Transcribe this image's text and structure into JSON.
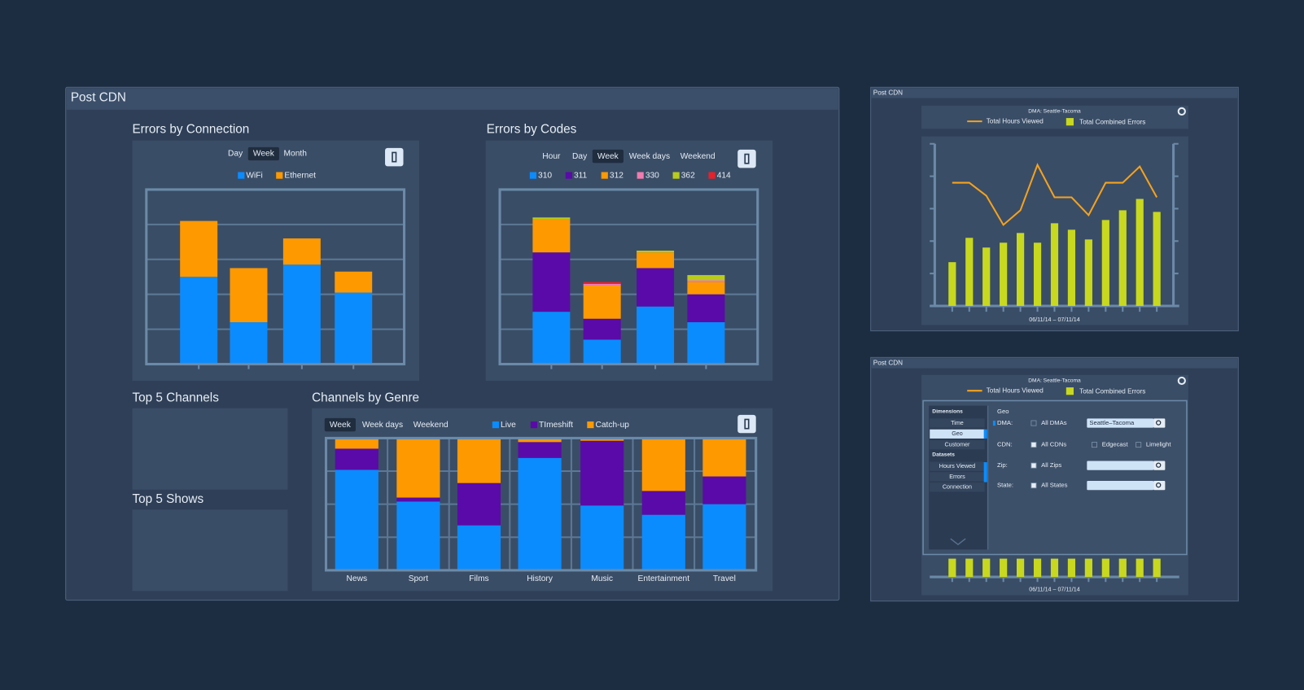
{
  "main_title": "Post CDN",
  "side_titles": [
    "Post CDN",
    "Post CDN"
  ],
  "top5": [
    "Top 5 Channels",
    "Top 5 Shows"
  ],
  "chart_data": [
    {
      "type": "bar",
      "stacked": true,
      "title": "Errors by Connection",
      "buttons": [
        "Day",
        "Week",
        "Month"
      ],
      "selected": 1,
      "categories": [
        null,
        null,
        null,
        null
      ],
      "series": [
        {
          "name": "WiFi",
          "color": "#0a8cff",
          "values": [
            50,
            24,
            57,
            41
          ]
        },
        {
          "name": "Ethernet",
          "color": "#ff9900",
          "values": [
            32,
            31,
            15,
            12
          ]
        }
      ],
      "ylim": [
        0,
        100
      ],
      "yticks": [
        0,
        20,
        40,
        60,
        80,
        100
      ],
      "grid": true
    },
    {
      "type": "bar",
      "stacked": true,
      "title": "Errors by Codes",
      "buttons": [
        "Hour",
        "Day",
        "Week",
        "Week days",
        "Weekend"
      ],
      "selected": 2,
      "categories": [
        null,
        null,
        null,
        null
      ],
      "series": [
        {
          "name": "310",
          "color": "#0a8cff",
          "values": [
            30,
            14,
            33,
            24
          ]
        },
        {
          "name": "311",
          "color": "#5a0aa8",
          "values": [
            34,
            12,
            22,
            16
          ]
        },
        {
          "name": "312",
          "color": "#ff9900",
          "values": [
            19,
            19,
            9,
            7
          ]
        },
        {
          "name": "330",
          "color": "#f27bb0",
          "values": [
            0,
            1,
            0,
            1
          ]
        },
        {
          "name": "362",
          "color": "#b8cc1a",
          "values": [
            1,
            0,
            1,
            3
          ]
        },
        {
          "name": "414",
          "color": "#e8202a",
          "values": [
            0,
            1,
            0,
            0
          ]
        }
      ],
      "ylim": [
        0,
        100
      ],
      "yticks": [
        0,
        20,
        40,
        60,
        80,
        100
      ],
      "grid": true
    },
    {
      "type": "bar",
      "stacked": true,
      "title": "Channels by Genre",
      "buttons": [
        "Week",
        "Week days",
        "Weekend"
      ],
      "selected": 0,
      "categories": [
        "News",
        "Sport",
        "Films",
        "History",
        "Music",
        "Entertainment",
        "Travel"
      ],
      "series": [
        {
          "name": "Live",
          "color": "#0a8cff",
          "values": [
            76,
            52,
            34,
            85,
            49,
            42,
            50
          ]
        },
        {
          "name": "TImeshift",
          "color": "#5a0aa8",
          "values": [
            16,
            3,
            32,
            12,
            49,
            18,
            21
          ]
        },
        {
          "name": "Catch-up",
          "color": "#ff9900",
          "values": [
            8,
            45,
            34,
            3,
            2,
            40,
            29
          ]
        }
      ],
      "ylim": [
        0,
        100
      ],
      "yticks": [
        0,
        25,
        50,
        75,
        100
      ],
      "grid": true
    },
    {
      "type": "combo",
      "title": "DMA: Seattle-Tacoma",
      "x_label": "06/11/14 – 07/11/14",
      "categories": [
        null,
        null,
        null,
        null,
        null,
        null,
        null,
        null,
        null,
        null,
        null,
        null,
        null
      ],
      "series": [
        {
          "name": "Total Hours Viewed",
          "kind": "line",
          "color": "#f5a21c",
          "values": [
            76,
            76,
            68,
            50,
            59,
            87,
            67,
            67,
            56,
            76,
            76,
            86,
            67
          ]
        },
        {
          "name": "Total Combined Errors",
          "kind": "bar",
          "color": "#c8d81e",
          "values": [
            27,
            42,
            36,
            39,
            45,
            39,
            51,
            47,
            41,
            53,
            59,
            66,
            58
          ]
        }
      ],
      "ylim": [
        0,
        100
      ],
      "yticks": [
        0,
        20,
        40,
        60,
        80,
        100
      ],
      "grid": false
    }
  ],
  "filter_panel": {
    "dimensions_label": "Dimensions",
    "dimensions": [
      "Time",
      "Geo",
      "Customer"
    ],
    "selected_dimension": 1,
    "datasets_label": "Datasets",
    "datasets": [
      "Hours Viewed",
      "Errors",
      "Connection"
    ],
    "section": "Geo",
    "fields": [
      {
        "label": "DMA:",
        "options": [
          "All DMAs"
        ],
        "value": "Seattle–Tacoma"
      },
      {
        "label": "CDN:",
        "options": [
          "All CDNs",
          "Edgecast",
          "Limelight"
        ]
      },
      {
        "label": "Zip:",
        "options": [
          "All Zips"
        ]
      },
      {
        "label": "State:",
        "options": [
          "All States"
        ]
      }
    ]
  }
}
